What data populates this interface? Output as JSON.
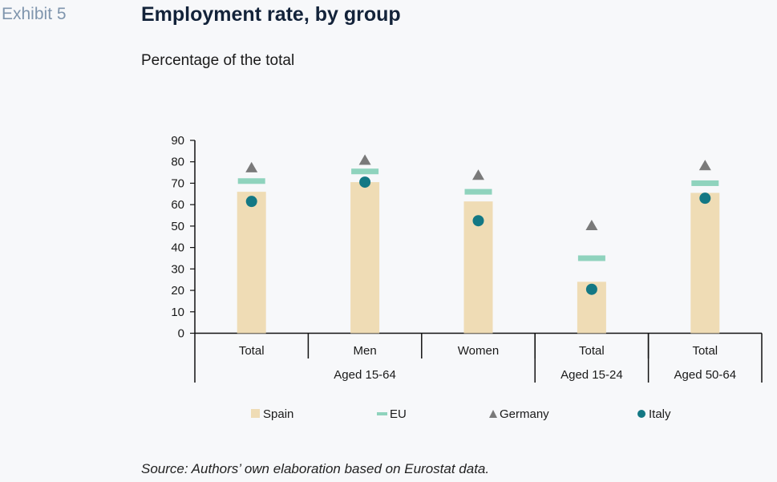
{
  "header": {
    "exhibit": "Exhibit 5",
    "title": "Employment rate, by group",
    "subtitle": "Percentage of the total"
  },
  "footer": {
    "source": "Source: Authors’ own elaboration based on Eurostat data."
  },
  "colors": {
    "spain": "#efdcb5",
    "eu": "#8fd3bd",
    "germany": "#7a7a7a",
    "italy": "#137884"
  },
  "chart_data": {
    "type": "bar",
    "title": "Employment rate, by group",
    "subtitle": "Percentage of the total",
    "xlabel": "",
    "ylabel": "",
    "ylim": [
      0,
      90
    ],
    "yticks": [
      0,
      10,
      20,
      30,
      40,
      50,
      60,
      70,
      80,
      90
    ],
    "categories": [
      "Total",
      "Men",
      "Women",
      "Total",
      "Total"
    ],
    "groups": [
      {
        "label": "Aged 15-64",
        "span": 3
      },
      {
        "label": "Aged 15-24",
        "span": 1
      },
      {
        "label": "Aged 50-64",
        "span": 1
      }
    ],
    "series": [
      {
        "name": "Spain",
        "marker": "bar",
        "values": [
          66,
          70.5,
          61.5,
          24,
          65.5
        ]
      },
      {
        "name": "EU",
        "marker": "dash",
        "values": [
          71,
          75.5,
          66,
          35,
          70
        ]
      },
      {
        "name": "Germany",
        "marker": "triangle",
        "values": [
          77.5,
          81,
          74,
          50.5,
          78.5
        ]
      },
      {
        "name": "Italy",
        "marker": "circle",
        "values": [
          61.5,
          70.5,
          52.5,
          20.5,
          63
        ]
      }
    ],
    "legend_position": "bottom",
    "grid": false
  }
}
